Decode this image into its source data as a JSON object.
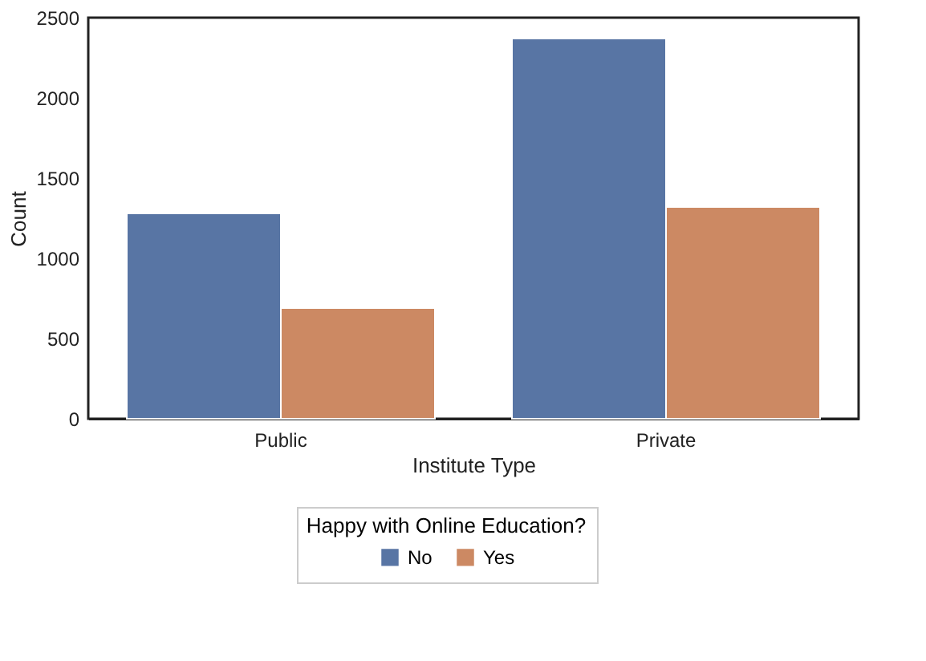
{
  "chart_data": {
    "type": "bar",
    "xlabel": "Institute Type",
    "ylabel": "Count",
    "legend_title": "Happy with Online Education?",
    "categories": [
      "Public",
      "Private"
    ],
    "series": [
      {
        "name": "No",
        "color": "#5875a4",
        "values": [
          1280,
          2370
        ]
      },
      {
        "name": "Yes",
        "color": "#cc8963",
        "values": [
          690,
          1320
        ]
      }
    ],
    "ylim": [
      0,
      2500
    ],
    "yticks": [
      0,
      500,
      1000,
      1500,
      2000,
      2500
    ],
    "grid": false,
    "legend": "bottom"
  }
}
